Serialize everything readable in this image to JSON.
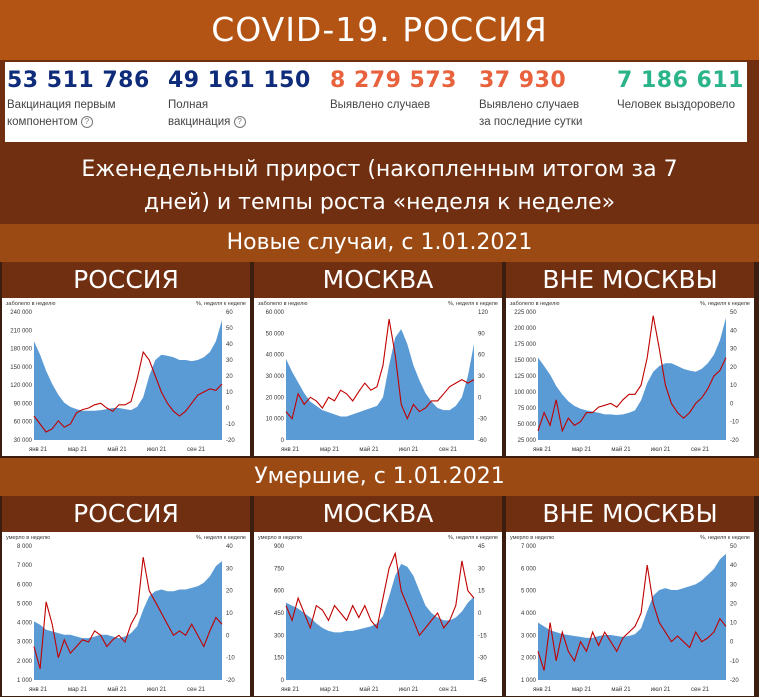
{
  "title": "COVID-19. РОССИЯ",
  "stats": [
    {
      "value": "53 511 786",
      "label_lines": [
        "Вакцинация первым",
        "компонентом"
      ],
      "help": true,
      "color": "#0f2c7a"
    },
    {
      "value": "49 161 150",
      "label_lines": [
        "Полная",
        "вакцинация"
      ],
      "help": true,
      "color": "#0f2c7a"
    },
    {
      "value": "8 279 573",
      "label_lines": [
        "Выявлено случаев"
      ],
      "help": false,
      "color": "#e8623d"
    },
    {
      "value": "37 930",
      "label_lines": [
        "Выявлено случаев",
        "за последние сутки"
      ],
      "help": false,
      "color": "#e8623d"
    },
    {
      "value": "7 186 611",
      "label_lines": [
        "Человек выздоровело"
      ],
      "help": false,
      "color": "#2bb38a"
    }
  ],
  "weekly_heading_lines": [
    "Еженедельный прирост (накопленным итогом за 7",
    "дней) и темпы роста «неделя к неделе»"
  ],
  "cases_heading": "Новые случаи, с 1.01.2021",
  "deaths_heading": "Умершие, с 1.01.2021",
  "help_icon": "?",
  "colors": {
    "area": "#5b9bd5",
    "line": "#c00000"
  },
  "chart_data": [
    {
      "type": "area",
      "region": "РОССИЯ",
      "group": "cases",
      "left_label": "заболело в неделю",
      "right_label": "%, неделя к неделе",
      "left_ticks": [
        "240 000",
        "210 000",
        "180 000",
        "150 000",
        "120 000",
        "90 000",
        "60 000",
        "30 000"
      ],
      "ylim": [
        0,
        240000
      ],
      "right_ticks": [
        "60",
        "50",
        "40",
        "30",
        "20",
        "10",
        "0",
        "-10",
        "-20"
      ],
      "y2lim": [
        -20,
        60
      ],
      "x_ticks": [
        "янв 21",
        "мар 21",
        "май 21",
        "июл 21",
        "сен 21"
      ],
      "area": [
        185000,
        160000,
        130000,
        105000,
        85000,
        70000,
        62000,
        58000,
        55000,
        55000,
        55000,
        56000,
        58000,
        60000,
        60000,
        58000,
        56000,
        62000,
        80000,
        120000,
        150000,
        160000,
        158000,
        155000,
        150000,
        150000,
        148000,
        150000,
        155000,
        165000,
        185000,
        225000
      ],
      "line": [
        -5,
        -10,
        -15,
        -13,
        -8,
        -12,
        -10,
        -3,
        -1,
        0,
        2,
        3,
        0,
        -2,
        2,
        2,
        4,
        18,
        35,
        30,
        20,
        10,
        3,
        -2,
        -5,
        -2,
        3,
        8,
        10,
        12,
        11,
        15
      ]
    },
    {
      "type": "area",
      "region": "МОСКВА",
      "group": "cases",
      "left_label": "заболело в неделю",
      "right_label": "%, неделя к неделе",
      "left_ticks": [
        "60 000",
        "50 000",
        "40 000",
        "30 000",
        "20 000",
        "10 000",
        "0"
      ],
      "ylim": [
        0,
        60000
      ],
      "right_ticks": [
        "120",
        "90",
        "60",
        "30",
        "0",
        "-30",
        "-60"
      ],
      "y2lim": [
        -60,
        120
      ],
      "x_ticks": [
        "янв 21",
        "мар 21",
        "май 21",
        "июл 21",
        "сен 21"
      ],
      "area": [
        38000,
        32000,
        27000,
        22000,
        18000,
        16000,
        14000,
        13000,
        12000,
        11000,
        11000,
        12000,
        13000,
        14000,
        15000,
        16000,
        20000,
        35000,
        48000,
        52000,
        45000,
        35000,
        28000,
        22000,
        18000,
        15000,
        14000,
        14000,
        16000,
        20000,
        30000,
        45000
      ],
      "line": [
        -20,
        -30,
        5,
        -10,
        0,
        -5,
        -15,
        0,
        -5,
        10,
        5,
        -5,
        8,
        20,
        10,
        15,
        45,
        110,
        60,
        -10,
        -30,
        -10,
        -20,
        -15,
        -5,
        -5,
        5,
        15,
        20,
        25,
        20,
        25
      ]
    },
    {
      "type": "area",
      "region": "ВНЕ МОСКВЫ",
      "group": "cases",
      "left_label": "заболело в неделю",
      "right_label": "%, неделя к неделе",
      "left_ticks": [
        "225 000",
        "200 000",
        "175 000",
        "150 000",
        "125 000",
        "100 000",
        "75 000",
        "50 000",
        "25 000"
      ],
      "ylim": [
        0,
        225000
      ],
      "right_ticks": [
        "50",
        "40",
        "30",
        "20",
        "10",
        "0",
        "-10",
        "-20"
      ],
      "y2lim": [
        -20,
        50
      ],
      "x_ticks": [
        "янв 21",
        "мар 21",
        "май 21",
        "июл 21",
        "сен 21"
      ],
      "area": [
        145000,
        130000,
        115000,
        95000,
        80000,
        68000,
        60000,
        55000,
        52000,
        50000,
        48000,
        45000,
        45000,
        44000,
        45000,
        48000,
        52000,
        70000,
        100000,
        120000,
        130000,
        135000,
        135000,
        130000,
        125000,
        122000,
        120000,
        125000,
        135000,
        150000,
        175000,
        215000
      ],
      "line": [
        -15,
        -5,
        -12,
        2,
        -15,
        -8,
        -12,
        -10,
        -5,
        -5,
        -2,
        -1,
        0,
        -2,
        2,
        5,
        5,
        10,
        25,
        48,
        30,
        10,
        0,
        -5,
        -8,
        -5,
        0,
        3,
        8,
        15,
        18,
        25
      ]
    },
    {
      "type": "area",
      "region": "РОССИЯ",
      "group": "deaths",
      "left_label": "умерло в неделю",
      "right_label": "%, неделя к неделе",
      "left_ticks": [
        "8 000",
        "7 000",
        "6 000",
        "5 000",
        "4 000",
        "3 000",
        "2 000",
        "1 000"
      ],
      "ylim": [
        0,
        8000
      ],
      "right_ticks": [
        "40",
        "30",
        "20",
        "10",
        "0",
        "-10",
        "-20"
      ],
      "y2lim": [
        -20,
        40
      ],
      "x_ticks": [
        "янв 21",
        "мар 21",
        "май 21",
        "июл 21",
        "сен 21"
      ],
      "area": [
        3500,
        3300,
        3000,
        2900,
        2800,
        2700,
        2700,
        2600,
        2500,
        2500,
        2600,
        2700,
        2700,
        2600,
        2500,
        2600,
        2800,
        3200,
        4200,
        5000,
        5300,
        5400,
        5300,
        5300,
        5400,
        5400,
        5500,
        5600,
        5800,
        6200,
        6800,
        7100
      ],
      "line": [
        -5,
        -15,
        15,
        5,
        -10,
        -2,
        -8,
        -5,
        -2,
        -3,
        2,
        0,
        -5,
        -2,
        0,
        -3,
        5,
        10,
        35,
        20,
        15,
        10,
        5,
        0,
        2,
        0,
        5,
        0,
        -5,
        2,
        8,
        5
      ]
    },
    {
      "type": "area",
      "region": "МОСКВА",
      "group": "deaths",
      "left_label": "умерло в неделю",
      "right_label": "%, неделя к неделе",
      "left_ticks": [
        "900",
        "750",
        "600",
        "450",
        "300",
        "150",
        "0"
      ],
      "ylim": [
        0,
        900
      ],
      "right_ticks": [
        "45",
        "30",
        "15",
        "0",
        "-15",
        "-30",
        "-45"
      ],
      "y2lim": [
        -45,
        45
      ],
      "x_ticks": [
        "янв 21",
        "мар 21",
        "май 21",
        "июл 21",
        "сен 21"
      ],
      "area": [
        520,
        500,
        480,
        450,
        420,
        380,
        350,
        330,
        320,
        320,
        330,
        330,
        340,
        350,
        360,
        380,
        430,
        560,
        700,
        780,
        760,
        700,
        600,
        500,
        450,
        420,
        400,
        400,
        420,
        460,
        520,
        560
      ],
      "line": [
        5,
        -5,
        10,
        0,
        -10,
        5,
        2,
        -5,
        5,
        0,
        -5,
        5,
        -3,
        5,
        -5,
        -10,
        10,
        30,
        40,
        15,
        5,
        -5,
        -15,
        -10,
        -5,
        0,
        -10,
        -5,
        5,
        35,
        15,
        10
      ]
    },
    {
      "type": "area",
      "region": "ВНЕ МОСКВЫ",
      "group": "deaths",
      "left_label": "умерло в неделю",
      "right_label": "%, неделя к неделе",
      "left_ticks": [
        "7 000",
        "6 000",
        "5 000",
        "4 000",
        "3 000",
        "2 000",
        "1 000"
      ],
      "ylim": [
        0,
        7000
      ],
      "right_ticks": [
        "50",
        "40",
        "30",
        "20",
        "10",
        "0",
        "-10",
        "-20"
      ],
      "y2lim": [
        -20,
        50
      ],
      "x_ticks": [
        "янв 21",
        "мар 21",
        "май 21",
        "июл 21",
        "сен 21"
      ],
      "area": [
        3000,
        2800,
        2600,
        2500,
        2400,
        2350,
        2300,
        2250,
        2200,
        2200,
        2300,
        2350,
        2350,
        2300,
        2250,
        2300,
        2400,
        2700,
        3600,
        4400,
        4700,
        4800,
        4700,
        4700,
        4800,
        4900,
        5000,
        5200,
        5500,
        5800,
        6300,
        6600
      ],
      "line": [
        -5,
        -15,
        10,
        -10,
        5,
        -5,
        -10,
        0,
        -5,
        5,
        -2,
        5,
        0,
        -5,
        2,
        5,
        8,
        15,
        40,
        20,
        10,
        5,
        0,
        3,
        0,
        -3,
        5,
        0,
        2,
        5,
        12,
        8
      ]
    }
  ]
}
